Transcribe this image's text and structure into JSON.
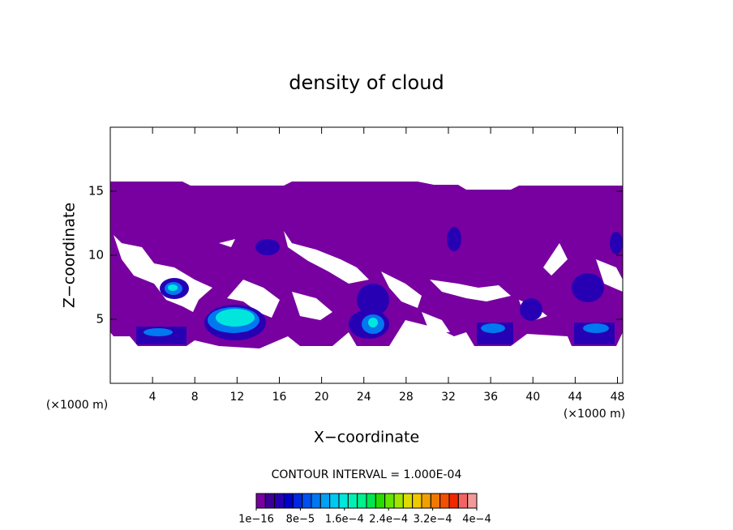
{
  "chart_data": {
    "type": "contour",
    "title": "density of cloud",
    "x_label": "X−coordinate",
    "y_label": "Z−coordinate",
    "x_unit": "(×1000 m)",
    "y_unit": "(×1000 m)",
    "xlim": [
      0,
      48.5
    ],
    "xticks": [
      4,
      8,
      12,
      16,
      20,
      24,
      28,
      32,
      36,
      40,
      44,
      48
    ],
    "ylim": [
      0,
      20
    ],
    "yticks": [
      5,
      10,
      15
    ],
    "contour_interval_label": "CONTOUR INTERVAL = 1.000E-04",
    "colorbar": {
      "colors": [
        "#7800a0",
        "#3c0096",
        "#2800b4",
        "#0000c8",
        "#0028dc",
        "#0050f0",
        "#0078f0",
        "#00a0f0",
        "#00c8f0",
        "#00e6dc",
        "#00f0b4",
        "#00f08c",
        "#00e650",
        "#28dc00",
        "#64e600",
        "#a0e600",
        "#dcdc00",
        "#f0c800",
        "#f0a000",
        "#f07800",
        "#f05000",
        "#f02800",
        "#f06464",
        "#f09a9a"
      ],
      "ticks": [
        {
          "value": 1e-16,
          "label": "1e−16"
        },
        {
          "value": 8e-05,
          "label": "8e−5"
        },
        {
          "value": 0.00016,
          "label": "1.6e−4"
        },
        {
          "value": 0.00024,
          "label": "2.4e−4"
        },
        {
          "value": 0.00032,
          "label": "3.2e−4"
        },
        {
          "value": 0.0004,
          "label": "4e−4"
        }
      ]
    }
  }
}
